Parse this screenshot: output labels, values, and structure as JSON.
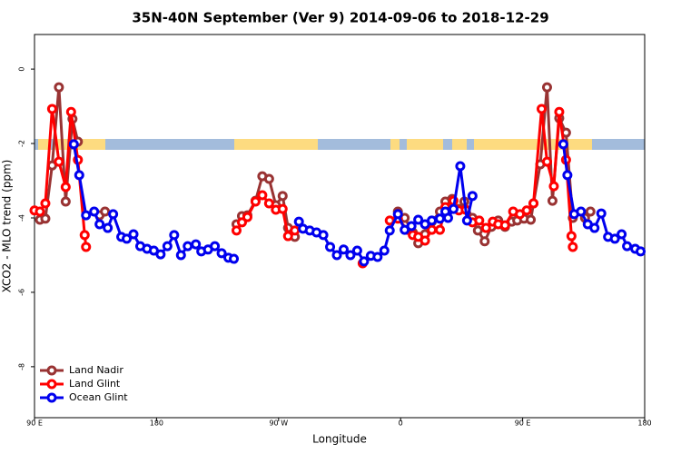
{
  "chart_data": {
    "type": "line",
    "title": "35N-40N September (Ver 9)   2014-09-06 to 2018-12-29",
    "x_label": "Longitude",
    "y_label": "XCO2 - MLO trend (ppm)",
    "xlim": [
      90,
      540
    ],
    "ylim": [
      -9.37,
      0.93
    ],
    "xticks": [
      {
        "value": 90,
        "label": "90 E"
      },
      {
        "value": 180,
        "label": "180"
      },
      {
        "value": 270,
        "label": "90 W"
      },
      {
        "value": 360,
        "label": "0"
      },
      {
        "value": 450,
        "label": "90 E"
      },
      {
        "value": 540,
        "label": "180"
      }
    ],
    "yticks": [
      0,
      -2,
      -4,
      -6,
      -8
    ],
    "legend": "bottom-left",
    "series": [
      {
        "name": "Land Nadir",
        "color": "#993333",
        "x": [
          94,
          98,
          103,
          108,
          113,
          118,
          122,
          null,
          138,
          142,
          null,
          239,
          243,
          247,
          253,
          258,
          263,
          268,
          273,
          277,
          282,
          null,
          358,
          363,
          369,
          373,
          378,
          383,
          389,
          393,
          398,
          403,
          407,
          413,
          417,
          422,
          427,
          432,
          437,
          442,
          446,
          451,
          456,
          458,
          463,
          468,
          472,
          477,
          482,
          487,
          null,
          496,
          500
        ],
        "values": [
          -4.05,
          -4.02,
          -2.59,
          -0.49,
          -3.56,
          -1.34,
          -1.95,
          null,
          -3.93,
          -3.83,
          null,
          -4.17,
          -3.95,
          -3.93,
          -3.54,
          -2.88,
          -2.95,
          -3.66,
          -3.41,
          -4.27,
          -4.51,
          null,
          -3.83,
          -4.0,
          -4.39,
          -4.68,
          -4.44,
          -4.1,
          -3.83,
          -3.56,
          -3.49,
          -3.76,
          -3.56,
          -4.0,
          -4.34,
          -4.63,
          -4.24,
          -4.07,
          -4.24,
          -4.1,
          -4.07,
          -4.02,
          -4.05,
          -3.61,
          -2.56,
          -0.49,
          -3.54,
          -1.32,
          -1.71,
          -4.0,
          null,
          -4.0,
          -3.83
        ]
      },
      {
        "name": "Land Glint",
        "color": "#ff0000",
        "x": [
          90,
          94,
          98,
          103,
          108,
          113,
          117,
          122,
          127,
          128,
          null,
          239,
          243,
          247,
          253,
          258,
          263,
          268,
          273,
          277,
          282,
          null,
          332,
          null,
          352,
          358,
          365,
          369,
          373,
          378,
          383,
          389,
          393,
          399,
          403,
          408,
          413,
          418,
          423,
          428,
          432,
          437,
          443,
          448,
          453,
          458,
          464,
          468,
          473,
          477,
          482,
          486,
          487
        ],
        "values": [
          -3.8,
          -3.83,
          -3.61,
          -1.07,
          -2.49,
          -3.17,
          -1.15,
          -2.44,
          -4.46,
          -4.78,
          null,
          -4.34,
          -4.12,
          -3.98,
          -3.56,
          -3.39,
          -3.61,
          -3.78,
          -3.76,
          -4.49,
          -4.34,
          null,
          -5.22,
          null,
          -4.07,
          -4.02,
          -4.32,
          -4.46,
          -4.51,
          -4.61,
          -4.32,
          -4.32,
          -3.71,
          -3.54,
          -3.8,
          -3.78,
          -4.12,
          -4.07,
          -4.27,
          -4.1,
          -4.17,
          -4.2,
          -3.83,
          -3.9,
          -3.8,
          -3.61,
          -1.07,
          -2.49,
          -3.15,
          -1.15,
          -2.44,
          -4.49,
          -4.78
        ]
      },
      {
        "name": "Ocean Glint",
        "color": "#0000ee",
        "x": [
          119,
          123,
          128,
          134,
          138,
          144,
          148,
          154,
          158,
          163,
          168,
          173,
          178,
          183,
          188,
          193,
          198,
          203,
          209,
          213,
          218,
          223,
          228,
          233,
          237,
          null,
          285,
          288,
          293,
          298,
          303,
          308,
          313,
          318,
          323,
          328,
          333,
          338,
          343,
          348,
          352,
          358,
          363,
          368,
          373,
          378,
          383,
          389,
          393,
          395,
          399,
          404,
          409,
          413,
          null,
          480,
          483,
          488,
          493,
          498,
          503,
          508,
          513,
          518,
          523,
          527,
          533,
          537
        ],
        "values": [
          -2.02,
          -2.85,
          -3.93,
          -3.83,
          -4.17,
          -4.27,
          -3.9,
          -4.51,
          -4.56,
          -4.44,
          -4.76,
          -4.83,
          -4.88,
          -4.98,
          -4.76,
          -4.46,
          -5.0,
          -4.76,
          -4.71,
          -4.9,
          -4.85,
          -4.76,
          -4.95,
          -5.07,
          -5.1,
          null,
          -4.1,
          -4.29,
          -4.34,
          -4.39,
          -4.46,
          -4.78,
          -5.0,
          -4.85,
          -5.0,
          -4.88,
          -5.17,
          -5.02,
          -5.05,
          -4.88,
          -4.34,
          -3.9,
          -4.32,
          -4.22,
          -4.05,
          -4.17,
          -4.07,
          -4.02,
          -3.83,
          -4.0,
          -3.76,
          -2.61,
          -4.07,
          -3.41,
          null,
          -2.02,
          -2.85,
          -3.9,
          -3.83,
          -4.17,
          -4.27,
          -3.88,
          -4.51,
          -4.56,
          -4.44,
          -4.76,
          -4.83,
          -4.9
        ]
      }
    ]
  }
}
